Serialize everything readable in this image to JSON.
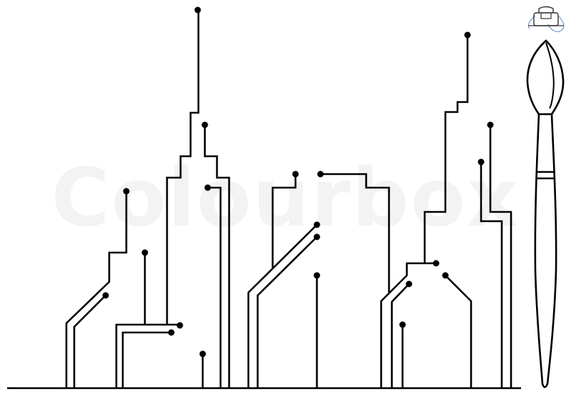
{
  "watermark": {
    "text": "Colourbox"
  },
  "icons": {
    "corner": "bag-icon",
    "brush": "paintbrush-icon"
  },
  "colors": {
    "line": "#000000",
    "background": "#ffffff",
    "watermark": "#f2f2f2",
    "corner_icon_accent": "#7a9ad0"
  }
}
